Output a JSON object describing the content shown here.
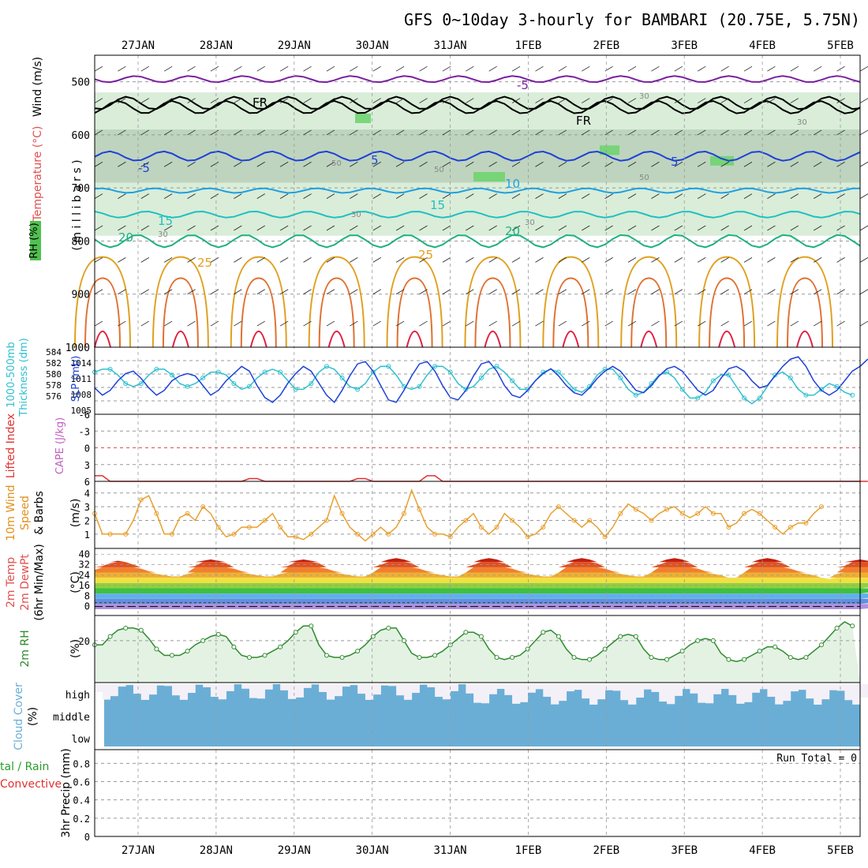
{
  "title": "GFS 0~10day 3-hourly for BAMBARI (20.75E, 5.75N)",
  "dates": [
    "27JAN",
    "28JAN",
    "29JAN",
    "30JAN",
    "31JAN",
    "1FEB",
    "2FEB",
    "3FEB",
    "4FEB",
    "5FEB"
  ],
  "colors": {
    "grid": "#999999",
    "axis": "#000000",
    "temp_cold": "#7b1fa2",
    "temp_blue": "#1e40d8",
    "temp_lblue": "#1ea0e0",
    "temp_cyan": "#20c0c0",
    "temp_green": "#20b080",
    "temp_orange": "#e0a020",
    "temp_red": "#e02040",
    "rh_fill": "#cfe8cf",
    "rh_dark": "#a8c0a8",
    "slp": "#1e40d8",
    "thick": "#30c0d0",
    "wind": "#e8a030",
    "rh2m": "#2e8b2e",
    "cloud": "#6aaed6",
    "precip_bg": "#ffffff"
  },
  "panels": {
    "upper": {
      "ylabel_wind": "Wind (m/s)",
      "ylabel_temp": "Temperature (°C)",
      "ylabel_rh": "RH (%)",
      "ylabel_unit": "( m i l l i b a r s )",
      "yticks": [
        "500",
        "600",
        "700",
        "800",
        "900",
        "1000"
      ],
      "contour_labels": [
        "-5",
        "FR",
        "FR",
        "-5",
        "5",
        "5",
        "10",
        "15",
        "15",
        "20",
        "20",
        "25",
        "25",
        "30",
        "30",
        "30",
        "30",
        "50",
        "50",
        "50",
        "30"
      ]
    },
    "slp": {
      "ylabel_left": "1000-500mb",
      "ylabel_left2": "Thickness (dm)",
      "ylabel_right": "SLP (mb)",
      "left_ticks": [
        "584",
        "582",
        "580",
        "578",
        "576"
      ],
      "right_ticks": [
        "1014",
        "1011",
        "1008",
        "1005"
      ]
    },
    "cape": {
      "ylabel": "Lifted Index",
      "ylabel2": "CAPE (J/kg)",
      "ticks": [
        "-6",
        "-3",
        "0",
        "3",
        "6"
      ]
    },
    "wind10": {
      "ylabel": "10m Wind",
      "ylabel2": "Speed",
      "ylabel3": "& Barbs",
      "unit": "(m/s)",
      "ticks": [
        "4",
        "3",
        "2",
        "1"
      ]
    },
    "temp2m": {
      "ylabel": "2m Temp",
      "ylabel2": "2m DewPt",
      "ylabel3": "(6hr Min/Max)",
      "unit": "(°C)",
      "ticks": [
        "40",
        "32",
        "24",
        "16",
        "8",
        "0"
      ]
    },
    "rh2m": {
      "ylabel": "2m RH",
      "unit": "(%)",
      "ticks": [
        "20"
      ]
    },
    "cloud": {
      "ylabel": "Cloud Cover",
      "unit": "(%)",
      "levels": [
        "high",
        "middle",
        "low"
      ]
    },
    "precip": {
      "ylabel_a": "tal / Rain",
      "ylabel_b": "Convective",
      "ylabel": "3hr Precip (mm)",
      "run_total": "Run Total = 0",
      "ticks": [
        "0.8",
        "0.6",
        "0.4",
        "0.2",
        "0"
      ]
    }
  },
  "chart_data": {
    "type": "line",
    "x": "3-hourly steps from 26JAN 12Z to 5FEB 06Z",
    "series": [
      {
        "name": "SLP (mb)",
        "values": [
          1008.5,
          1007,
          1008,
          1010,
          1011.5,
          1012,
          1010.5,
          1008.5,
          1007,
          1008,
          1010,
          1011,
          1011.5,
          1011,
          1009,
          1007,
          1008,
          1010,
          1011.5,
          1013,
          1012,
          1009,
          1006.5,
          1005.5,
          1007,
          1009.5,
          1011.5,
          1013,
          1012,
          1009.5,
          1007,
          1005.5,
          1008,
          1011,
          1013.5,
          1014,
          1012,
          1009,
          1006,
          1005.5,
          1008,
          1011,
          1013.5,
          1014,
          1012,
          1009,
          1006.5,
          1006,
          1008,
          1011,
          1013.5,
          1014,
          1012,
          1009,
          1007,
          1006.5,
          1008,
          1010,
          1011.5,
          1012.5,
          1011,
          1009,
          1007.5,
          1007,
          1008.5,
          1010.5,
          1012,
          1013,
          1012,
          1010,
          1008,
          1007.5,
          1009,
          1011,
          1012.5,
          1013,
          1012,
          1010,
          1008,
          1007,
          1008,
          1010.5,
          1012.5,
          1013,
          1012,
          1010,
          1008.5,
          1009,
          1011,
          1013,
          1014.5,
          1015,
          1013,
          1010,
          1008,
          1007,
          1008,
          1010,
          1012,
          1013,
          1014.5
        ]
      },
      {
        "name": "1000-500mb Thickness (dm)",
        "values": [
          581.5,
          582,
          582,
          581,
          579.5,
          579,
          579.5,
          581,
          582,
          582,
          581,
          579.5,
          579,
          579.5,
          580.5,
          581.5,
          581.5,
          581,
          579.5,
          578.5,
          579,
          580.5,
          581.5,
          582,
          581.5,
          580,
          578.5,
          578.5,
          579.5,
          581.5,
          582.5,
          582,
          580.5,
          579,
          578.5,
          579.5,
          581.5,
          582.5,
          582.5,
          581,
          579,
          578.5,
          579,
          581,
          582.5,
          582.5,
          581.5,
          579.5,
          578.5,
          579,
          580.5,
          582,
          582.5,
          581.5,
          580,
          578.5,
          578.5,
          580,
          581.5,
          582,
          581.5,
          580,
          578.5,
          578,
          579,
          581,
          582,
          582,
          580.5,
          578.5,
          577.5,
          578,
          579.5,
          581,
          581.5,
          580.5,
          578.5,
          577,
          577,
          578,
          580,
          581,
          581,
          579,
          577,
          576,
          577,
          579,
          581,
          581.5,
          580.5,
          578.5,
          577.5,
          577.5,
          578.5,
          579.5,
          579,
          578,
          577.5
        ]
      },
      {
        "name": "10m Wind Speed (m/s)",
        "values": [
          2.5,
          1,
          1,
          1,
          1,
          2,
          3.5,
          3.8,
          2.5,
          1,
          1,
          2.2,
          2.5,
          2,
          3,
          2.5,
          1.5,
          0.8,
          1,
          1.5,
          1.5,
          1.5,
          2,
          2.5,
          1.5,
          0.8,
          0.8,
          0.6,
          1,
          1.5,
          2,
          3.8,
          2.5,
          1.5,
          1,
          0.5,
          1,
          1.5,
          1,
          1.5,
          2.5,
          4.2,
          2.8,
          1.5,
          1,
          1,
          0.8,
          1.5,
          2,
          2.5,
          1.5,
          1,
          1.5,
          2.5,
          2,
          1.5,
          0.8,
          1,
          1.5,
          2.5,
          3,
          2.5,
          2,
          1.5,
          2,
          1.5,
          0.8,
          1.5,
          2.5,
          3.2,
          2.8,
          2.5,
          2,
          2.5,
          2.8,
          3,
          2.5,
          2.2,
          2.5,
          3,
          2.5,
          2.5,
          1.5,
          1.8,
          2.5,
          2.8,
          2.5,
          2,
          1.5,
          1,
          1.5,
          1.8,
          1.8,
          2.5,
          3
        ]
      },
      {
        "name": "2m Temp (°C)",
        "values": [
          28,
          31,
          33,
          35,
          34,
          32,
          29,
          27,
          25,
          24,
          23,
          23,
          25,
          31,
          35,
          36,
          35,
          33,
          29,
          27,
          25,
          24,
          23,
          23,
          25,
          31,
          35,
          36,
          35,
          33,
          29,
          27,
          25,
          24,
          23,
          23,
          26,
          32,
          36,
          37,
          36,
          33,
          29,
          27,
          25,
          24,
          23,
          23,
          26,
          32,
          36,
          37,
          36,
          33,
          29,
          27,
          25,
          24,
          23,
          23,
          26,
          32,
          36,
          37,
          36,
          33,
          29,
          27,
          25,
          24,
          23,
          23,
          26,
          32,
          36,
          37,
          36,
          33,
          29,
          27,
          25,
          24,
          22,
          22,
          26,
          32,
          36,
          37,
          36,
          33,
          29,
          27,
          25,
          24,
          22,
          21,
          25,
          31,
          35,
          36,
          35,
          32,
          28,
          25,
          23,
          21,
          20
        ]
      },
      {
        "name": "2m RH (%)",
        "values": [
          18,
          18,
          22,
          25,
          26,
          26,
          25,
          21,
          16,
          13,
          13,
          13,
          15,
          18,
          20,
          22,
          23,
          22,
          17,
          13,
          12,
          12,
          13,
          15,
          17,
          20,
          24,
          27,
          27,
          18,
          13,
          12,
          12,
          13,
          15,
          18,
          22,
          25,
          26,
          26,
          20,
          14,
          12,
          12,
          13,
          15,
          18,
          21,
          24,
          24,
          22,
          16,
          12,
          11,
          12,
          13,
          16,
          20,
          24,
          25,
          22,
          16,
          12,
          11,
          11,
          13,
          16,
          19,
          22,
          23,
          22,
          16,
          12,
          11,
          11,
          13,
          15,
          18,
          20,
          21,
          20,
          14,
          11,
          10,
          11,
          13,
          15,
          17,
          17,
          15,
          12,
          11,
          12,
          15,
          18,
          22,
          26,
          29,
          27
        ]
      },
      {
        "name": "Lifted Index",
        "values": [
          5,
          5,
          6,
          6,
          6,
          6,
          6,
          6,
          6,
          6,
          6,
          6,
          6,
          6,
          6,
          6,
          6,
          6,
          6,
          6,
          5.5,
          5.5,
          6,
          6,
          6,
          6,
          6,
          6,
          6,
          6,
          6,
          6,
          6,
          6,
          5.5,
          5.5,
          6,
          6,
          6,
          6,
          6,
          6,
          6,
          5,
          5,
          6,
          6,
          6,
          6,
          6,
          6,
          6,
          6,
          6,
          6,
          6,
          6,
          6,
          6,
          6,
          6,
          6,
          6,
          6,
          6,
          6,
          6,
          6,
          6,
          6,
          6,
          6,
          6,
          6,
          6,
          6,
          6,
          6,
          6,
          6,
          6,
          6,
          6,
          6,
          6,
          6,
          6,
          6,
          6,
          6,
          6,
          6,
          6,
          6,
          6,
          6,
          6,
          6,
          6,
          6,
          6
        ]
      },
      {
        "name": "3hr Precip (mm)",
        "values": [
          0,
          0,
          0,
          0,
          0,
          0,
          0,
          0,
          0,
          0
        ]
      }
    ],
    "xlim": [
      "26JAN 12Z",
      "5FEB 06Z"
    ]
  }
}
